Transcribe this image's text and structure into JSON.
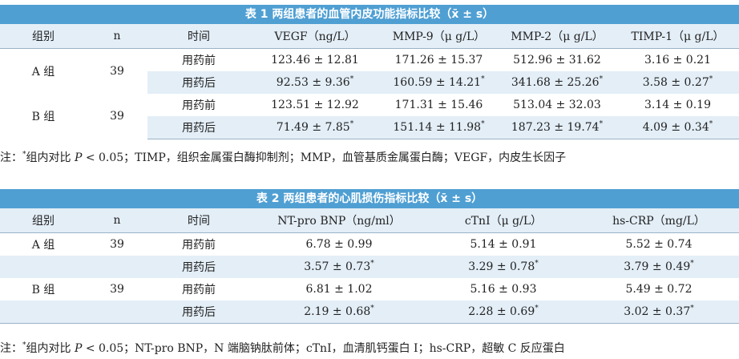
{
  "table1": {
    "caption": "表 1 两组患者的血管内皮功能指标比较（x̄ ± s）",
    "headers": [
      "组别",
      "n",
      "时间",
      "VEGF（ng/L）",
      "MMP-9（μ g/L）",
      "MMP-2（μ g/L）",
      "TIMP-1（μ g/L）"
    ],
    "groups": [
      {
        "name": "A 组",
        "n": "39",
        "rows": [
          {
            "time": "用药前",
            "vals": [
              "123.46 ± 12.81",
              "171.26 ± 15.37",
              "512.96 ± 31.62",
              "3.16 ± 0.21"
            ],
            "star": [
              false,
              false,
              false,
              false
            ]
          },
          {
            "time": "用药后",
            "vals": [
              "92.53 ± 9.36",
              "160.59 ± 14.21",
              "341.68 ± 25.26",
              "3.58 ± 0.27"
            ],
            "star": [
              true,
              true,
              true,
              true
            ]
          }
        ]
      },
      {
        "name": "B 组",
        "n": "39",
        "rows": [
          {
            "time": "用药前",
            "vals": [
              "123.51 ± 12.92",
              "171.31 ± 15.46",
              "513.04 ± 32.03",
              "3.14 ± 0.19"
            ],
            "star": [
              false,
              false,
              false,
              false
            ]
          },
          {
            "time": "用药后",
            "vals": [
              "71.49 ± 7.85",
              "151.14 ± 11.98",
              "187.23 ± 19.74",
              "4.09 ± 0.34"
            ],
            "star": [
              true,
              true,
              true,
              true
            ]
          }
        ]
      }
    ],
    "note": {
      "prefix": "注：",
      "star": "*",
      "text1": "组内对比 ",
      "p": "P",
      "text2": " < 0.05；TIMP，组织金属蛋白酶抑制剂；MMP，血管基质金属蛋白酶；VEGF，内皮生长因子"
    }
  },
  "table2": {
    "caption": "表 2 两组患者的心肌损伤指标比较（x̄ ± s）",
    "headers": [
      "组别",
      "n",
      "时间",
      "NT-pro BNP（ng/ml）",
      "cTnI（μ g/L）",
      "hs-CRP（mg/L）"
    ],
    "groups": [
      {
        "name": "A 组",
        "n": "39",
        "rows": [
          {
            "time": "用药前",
            "vals": [
              "6.78 ± 0.99",
              "5.14 ± 0.91",
              "5.52 ± 0.74"
            ],
            "star": [
              false,
              false,
              false
            ]
          },
          {
            "time": "用药后",
            "vals": [
              "3.57 ± 0.73",
              "3.29 ± 0.78",
              "3.79 ± 0.49"
            ],
            "star": [
              true,
              true,
              true
            ]
          }
        ]
      },
      {
        "name": "B 组",
        "n": "39",
        "rows": [
          {
            "time": "用药前",
            "vals": [
              "6.81 ± 1.02",
              "5.16 ± 0.93",
              "5.49 ± 0.72"
            ],
            "star": [
              false,
              false,
              false
            ]
          },
          {
            "time": "用药后",
            "vals": [
              "2.19 ± 0.68",
              "2.28 ± 0.69",
              "3.02 ± 0.37"
            ],
            "star": [
              true,
              true,
              true
            ]
          }
        ]
      }
    ],
    "note": {
      "prefix": "注：",
      "star": "*",
      "text1": "组内对比 ",
      "p": "P",
      "text2": " < 0.05；NT-pro BNP，N 端脑钠肽前体；cTnI，血清肌钙蛋白 I；hs-CRP，超敏 C 反应蛋白"
    }
  }
}
